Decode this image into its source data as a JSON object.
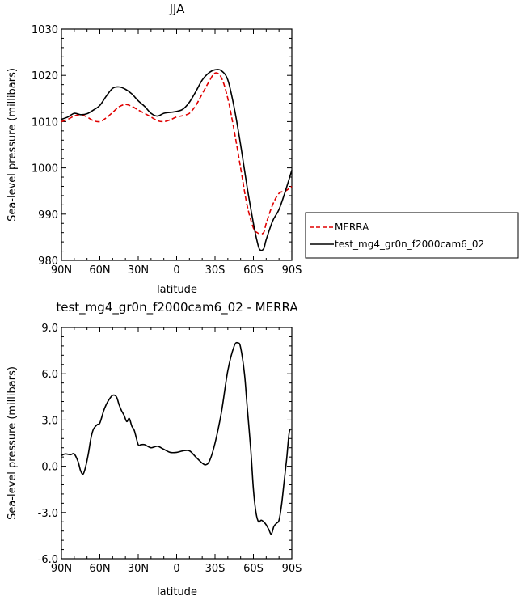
{
  "chart_data": [
    {
      "type": "line",
      "title": "JJA",
      "xlabel": "latitude",
      "ylabel": "Sea-level pressure (millibars)",
      "xlim": [
        90,
        -90
      ],
      "ylim": [
        980,
        1030
      ],
      "x_ticks": [
        90,
        60,
        30,
        0,
        -30,
        -60,
        -90
      ],
      "x_tick_labels": [
        "90N",
        "60N",
        "30N",
        "0",
        "30S",
        "60S",
        "90S"
      ],
      "y_ticks": [
        980,
        990,
        1000,
        1010,
        1020,
        1030
      ],
      "y_tick_labels": [
        "980",
        "990",
        "1000",
        "1010",
        "1020",
        "1030"
      ],
      "legend_position": "right",
      "series": [
        {
          "name": "MERRA",
          "color": "#e00000",
          "dash": "dashed",
          "x": [
            90,
            85,
            80,
            75,
            70,
            65,
            60,
            55,
            50,
            45,
            40,
            35,
            30,
            25,
            20,
            15,
            10,
            5,
            0,
            -5,
            -10,
            -15,
            -20,
            -25,
            -30,
            -35,
            -40,
            -45,
            -50,
            -55,
            -60,
            -63,
            -65,
            -68,
            -70,
            -75,
            -80,
            -85,
            -90
          ],
          "y": [
            1010,
            1010.5,
            1011.2,
            1011.5,
            1011,
            1010.2,
            1010,
            1010.8,
            1012,
            1013.2,
            1013.7,
            1013.3,
            1012.5,
            1011.8,
            1011,
            1010.2,
            1010,
            1010.4,
            1011,
            1011.3,
            1011.8,
            1013.5,
            1016,
            1018.5,
            1020.5,
            1019.5,
            1015,
            1008,
            1000,
            992,
            987,
            986,
            985.8,
            986,
            988,
            992,
            994.5,
            995,
            996
          ]
        },
        {
          "name": "test_mg4_gr0n_f2000cam6_02",
          "color": "#000000",
          "dash": "solid",
          "x": [
            90,
            85,
            80,
            75,
            70,
            65,
            60,
            55,
            50,
            45,
            40,
            35,
            30,
            25,
            20,
            15,
            10,
            5,
            0,
            -5,
            -10,
            -15,
            -20,
            -25,
            -30,
            -35,
            -40,
            -45,
            -50,
            -55,
            -60,
            -63,
            -65,
            -68,
            -70,
            -75,
            -80,
            -85,
            -90
          ],
          "y": [
            1010.5,
            1011,
            1011.8,
            1011.5,
            1011.7,
            1012.5,
            1013.5,
            1015.5,
            1017.2,
            1017.5,
            1017,
            1016,
            1014.5,
            1013.3,
            1011.8,
            1011.2,
            1011.8,
            1012,
            1012.2,
            1012.7,
            1014.2,
            1016.5,
            1019,
            1020.5,
            1021.2,
            1021,
            1019,
            1013,
            1005,
            996,
            988,
            984,
            982.3,
            982.5,
            984.5,
            988.5,
            991,
            995,
            999.5
          ]
        }
      ]
    },
    {
      "type": "line",
      "title": "test_mg4_gr0n_f2000cam6_02 - MERRA",
      "xlabel": "latitude",
      "ylabel": "Sea-level pressure (millibars)",
      "xlim": [
        90,
        -90
      ],
      "ylim": [
        -6,
        9
      ],
      "x_ticks": [
        90,
        60,
        30,
        0,
        -30,
        -60,
        -90
      ],
      "x_tick_labels": [
        "90N",
        "60N",
        "30N",
        "0",
        "30S",
        "60S",
        "90S"
      ],
      "y_ticks": [
        -6,
        -3,
        0,
        3,
        6,
        9
      ],
      "y_tick_labels": [
        "-6.0",
        "-3.0",
        "0.0",
        "3.0",
        "6.0",
        "9.0"
      ],
      "series": [
        {
          "color": "#000000",
          "dash": "solid",
          "x": [
            90,
            87,
            83,
            80,
            77,
            75,
            73,
            71,
            69,
            67,
            65,
            62,
            60,
            57,
            55,
            53,
            50,
            47,
            45,
            43,
            41,
            39,
            37,
            35,
            33,
            30,
            28,
            25,
            20,
            15,
            10,
            5,
            0,
            -5,
            -10,
            -15,
            -20,
            -23,
            -26,
            -30,
            -35,
            -40,
            -45,
            -48,
            -50,
            -53,
            -55,
            -58,
            -60,
            -62,
            -64,
            -66,
            -68,
            -70,
            -72,
            -74,
            -76,
            -78,
            -80,
            -82,
            -84,
            -86,
            -88,
            -90
          ],
          "y": [
            0.7,
            0.8,
            0.75,
            0.8,
            0.3,
            -0.3,
            -0.5,
            0,
            0.8,
            1.8,
            2.4,
            2.7,
            2.8,
            3.6,
            4.0,
            4.3,
            4.6,
            4.5,
            4.0,
            3.6,
            3.3,
            2.9,
            3.1,
            2.6,
            2.3,
            1.4,
            1.4,
            1.4,
            1.2,
            1.3,
            1.1,
            0.9,
            0.9,
            1.0,
            1.0,
            0.6,
            0.2,
            0.1,
            0.4,
            1.5,
            3.5,
            6.2,
            7.8,
            8.0,
            7.7,
            6.0,
            4.0,
            1.0,
            -1.5,
            -3.0,
            -3.6,
            -3.5,
            -3.6,
            -3.8,
            -4.1,
            -4.4,
            -3.9,
            -3.7,
            -3.5,
            -2.5,
            -1.0,
            0.5,
            2.2,
            2.4
          ]
        }
      ]
    }
  ]
}
